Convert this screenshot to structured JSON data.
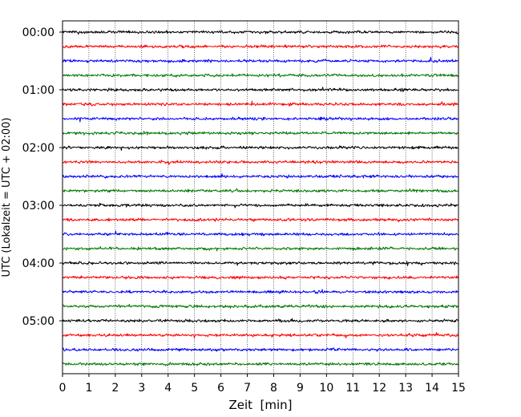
{
  "chart_data": {
    "type": "line",
    "subtype": "seismogram-helicorder",
    "xlabel": "Zeit  [min]",
    "ylabel": "UTC (Lokalzeit = UTC + 02:00)",
    "xlim": [
      0,
      15
    ],
    "x_ticks": [
      0,
      1,
      2,
      3,
      4,
      5,
      6,
      7,
      8,
      9,
      10,
      11,
      12,
      13,
      14,
      15
    ],
    "x_grid": "dotted vertical lines at each minute",
    "y_tick_labels": [
      "00:00",
      "01:00",
      "02:00",
      "03:00",
      "04:00",
      "05:00"
    ],
    "row_interval_minutes": 15,
    "row_start_times": [
      "00:00",
      "00:15",
      "00:30",
      "00:45",
      "01:00",
      "01:15",
      "01:30",
      "01:45",
      "02:00",
      "02:15",
      "02:30",
      "02:45",
      "03:00",
      "03:15",
      "03:30",
      "03:45",
      "04:00",
      "04:15",
      "04:30",
      "04:45",
      "05:00",
      "05:15",
      "05:30",
      "05:45"
    ],
    "trace_color_cycle": [
      "#000000",
      "#ff0000",
      "#0000ff",
      "#007700"
    ],
    "trace_note": "low-amplitude background noise on every row"
  }
}
